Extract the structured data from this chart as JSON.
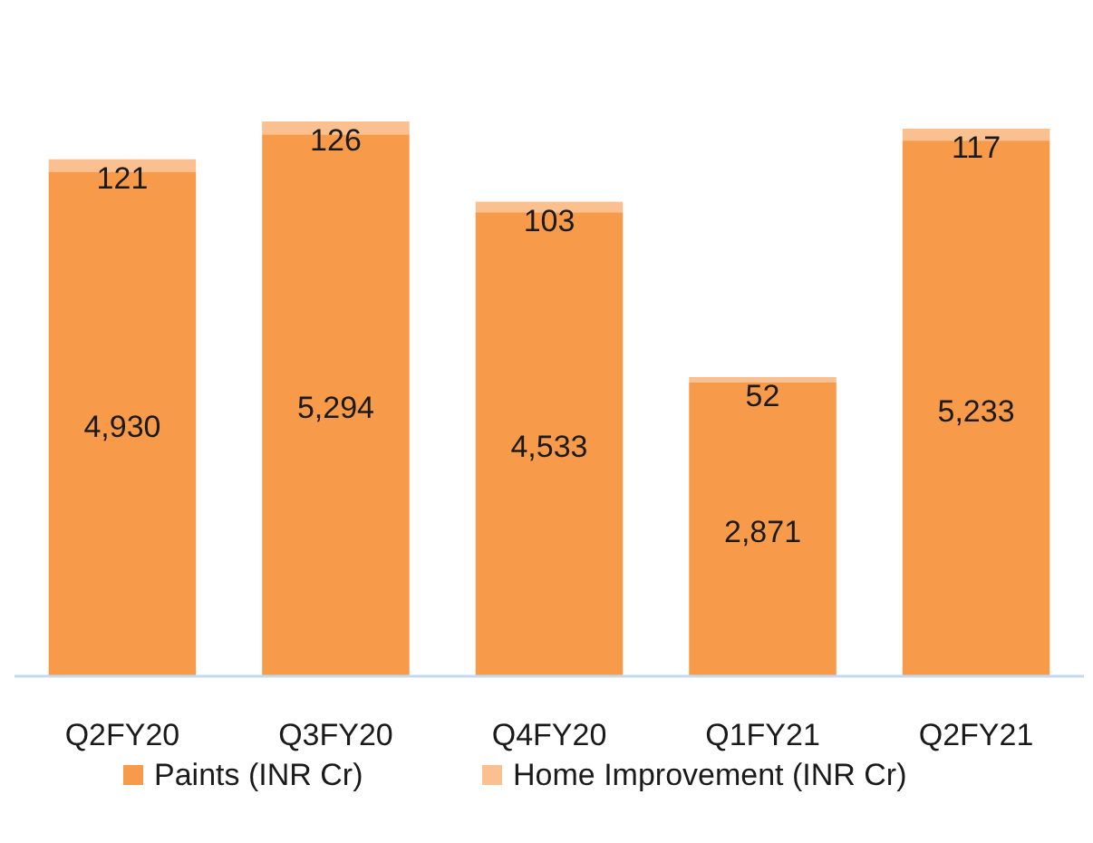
{
  "chart_data": {
    "type": "bar",
    "stacked": true,
    "categories": [
      "Q2FY20",
      "Q3FY20",
      "Q4FY20",
      "Q1FY21",
      "Q2FY21"
    ],
    "series": [
      {
        "name": "Paints (INR Cr)",
        "color": "#f79a4a",
        "values": [
          4930,
          5294,
          4533,
          2871,
          5233
        ],
        "value_labels": [
          "4,930",
          "5,294",
          "4,533",
          "2,871",
          "5,233"
        ]
      },
      {
        "name": "Home Improvement (INR Cr)",
        "color": "#fbc08f",
        "values": [
          121,
          126,
          103,
          52,
          117
        ],
        "value_labels": [
          "121",
          "126",
          "103",
          "52",
          "117"
        ]
      }
    ],
    "legend": "bottom"
  }
}
